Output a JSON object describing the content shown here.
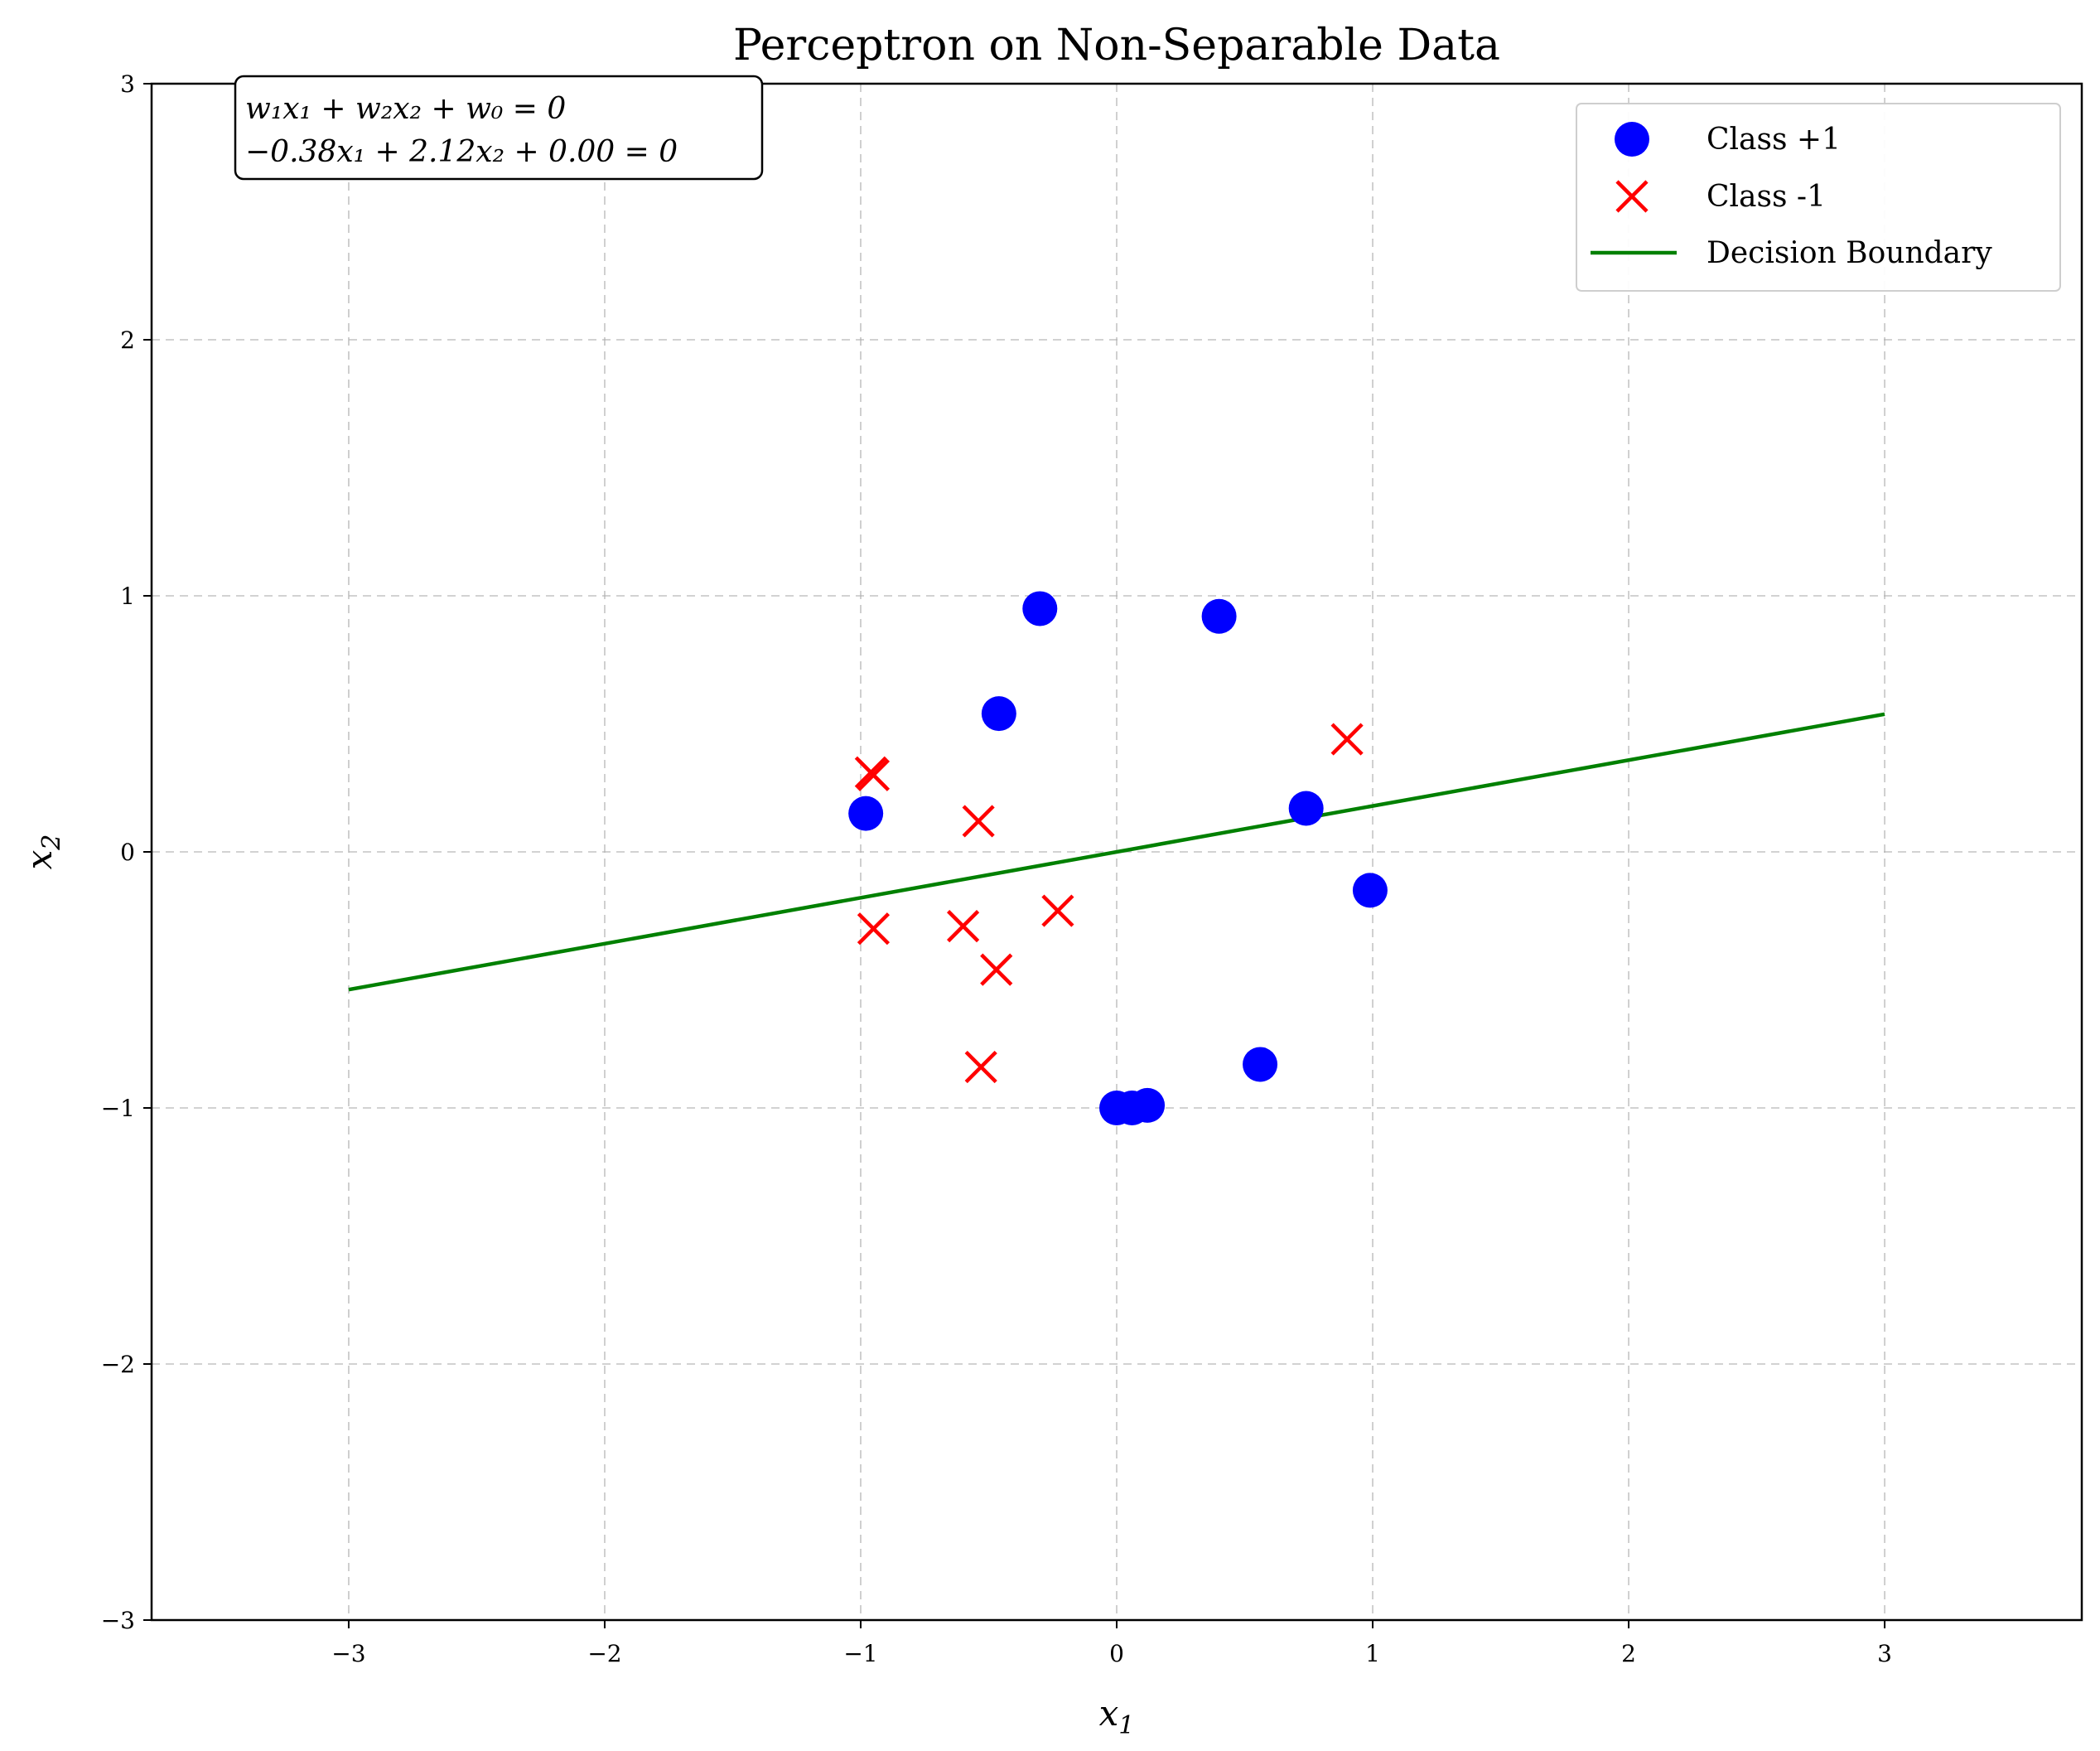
{
  "chart_data": {
    "type": "scatter",
    "title": "Perceptron on Non-Separable Data",
    "xlabel": "x1",
    "ylabel": "x2",
    "xlim": [
      -3.77,
      3.77
    ],
    "ylim": [
      -3,
      3
    ],
    "xticks": [
      -3,
      -2,
      -1,
      0,
      1,
      2,
      3
    ],
    "yticks": [
      -3,
      -2,
      -1,
      0,
      1,
      2,
      3
    ],
    "xtick_labels": [
      "−3",
      "−2",
      "−1",
      "0",
      "1",
      "2",
      "3"
    ],
    "ytick_labels": [
      "−3",
      "−2",
      "−1",
      "0",
      "1",
      "2",
      "3"
    ],
    "grid": true,
    "legend_position": "top-right",
    "equation_lines": [
      "w₁x₁ + w₂x₂ + w₀ = 0",
      "−0.38x₁ + 2.12x₂ + 0.00 = 0"
    ],
    "series": [
      {
        "name": "Class +1",
        "marker": "circle",
        "color": "#0000ff",
        "points": [
          [
            -0.3,
            0.95
          ],
          [
            0.4,
            0.92
          ],
          [
            -0.46,
            0.54
          ],
          [
            -0.98,
            0.15
          ],
          [
            0.74,
            0.17
          ],
          [
            0.99,
            -0.15
          ],
          [
            0.56,
            -0.83
          ],
          [
            0.0,
            -1.0
          ],
          [
            0.06,
            -1.0
          ],
          [
            0.12,
            -0.99
          ]
        ]
      },
      {
        "name": "Class -1",
        "marker": "x",
        "color": "#ff0000",
        "points": [
          [
            -0.96,
            0.31
          ],
          [
            -0.95,
            0.3
          ],
          [
            -0.54,
            0.12
          ],
          [
            0.9,
            0.44
          ],
          [
            -0.95,
            -0.3
          ],
          [
            -0.6,
            -0.29
          ],
          [
            -0.23,
            -0.23
          ],
          [
            -0.47,
            -0.46
          ],
          [
            -0.53,
            -0.84
          ]
        ]
      },
      {
        "name": "Decision Boundary",
        "marker": "line",
        "color": "#008000",
        "weights": {
          "w1": -0.38,
          "w2": 2.12,
          "w0": 0.0
        },
        "x_range": [
          -3,
          3
        ]
      }
    ]
  }
}
